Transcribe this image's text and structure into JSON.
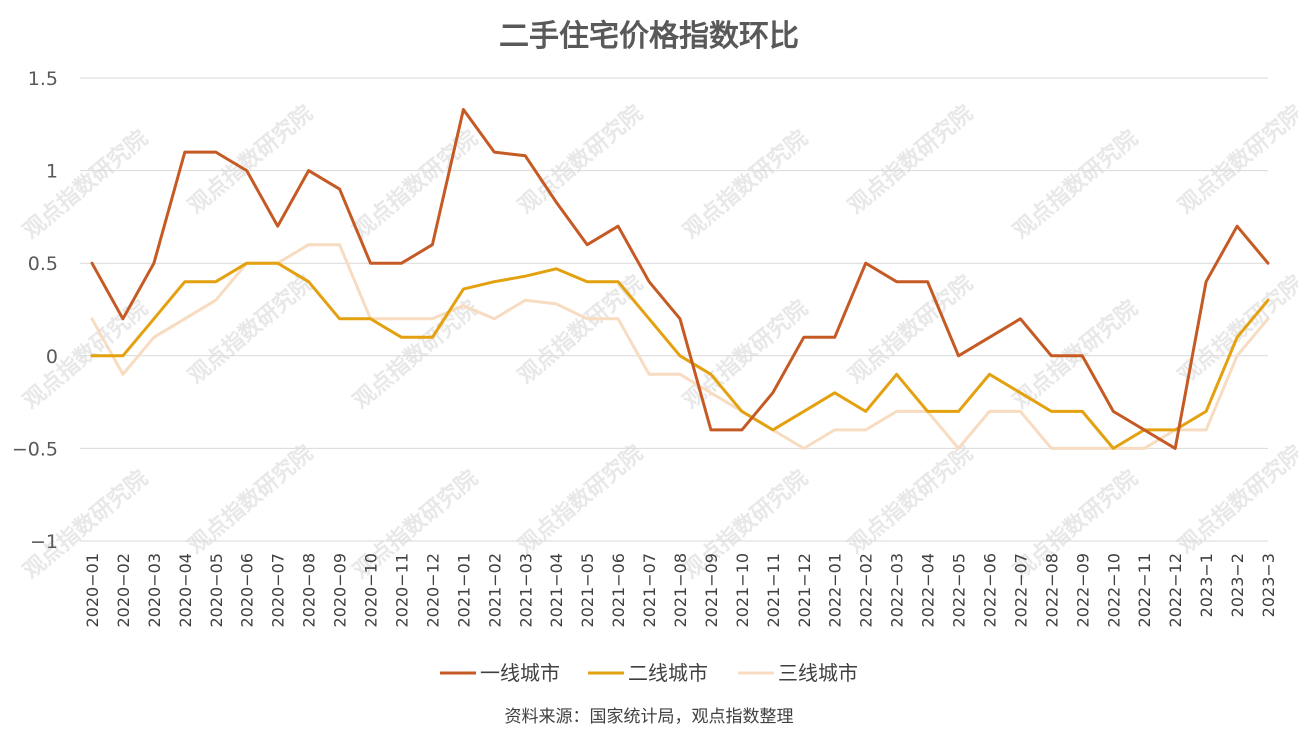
{
  "chart_data": {
    "type": "line",
    "title": "二手住宅价格指数环比",
    "source": "资料来源：国家统计局，观点指数整理",
    "watermark": "观点指数研究院",
    "ylim": [
      -1,
      1.5
    ],
    "yticks": [
      "1.5",
      "1",
      "0.5",
      "0",
      "−0.5",
      "−1"
    ],
    "ytick_values": [
      1.5,
      1,
      0.5,
      0,
      -0.5,
      -1
    ],
    "grid": true,
    "legend_position": "bottom",
    "categories": [
      "2020−01",
      "2020−02",
      "2020−03",
      "2020−04",
      "2020−05",
      "2020−06",
      "2020−07",
      "2020−08",
      "2020−09",
      "2020−10",
      "2020−11",
      "2020−12",
      "2021−01",
      "2021−02",
      "2021−03",
      "2021−04",
      "2021−05",
      "2021−06",
      "2021−07",
      "2021−08",
      "2021−09",
      "2021−10",
      "2021−11",
      "2021−12",
      "2022−01",
      "2022−02",
      "2022−03",
      "2022−04",
      "2022−05",
      "2022−06",
      "2022−07",
      "2022−08",
      "2022−09",
      "2022−10",
      "2022−11",
      "2022−12",
      "2023−1",
      "2023−2",
      "2023−3"
    ],
    "series": [
      {
        "name": "一线城市",
        "color": "#c55a24",
        "values": [
          0.5,
          0.2,
          0.5,
          1.1,
          1.1,
          1.0,
          0.7,
          1.0,
          0.9,
          0.5,
          0.5,
          0.6,
          1.33,
          1.1,
          1.08,
          0.83,
          0.6,
          0.7,
          0.4,
          0.2,
          -0.4,
          -0.4,
          -0.2,
          0.1,
          0.1,
          0.5,
          0.4,
          0.4,
          0.0,
          0.1,
          0.2,
          0.0,
          0.0,
          -0.3,
          -0.4,
          -0.5,
          0.4,
          0.7,
          0.5
        ]
      },
      {
        "name": "二线城市",
        "color": "#e3a10f",
        "values": [
          0.0,
          0.0,
          0.2,
          0.4,
          0.4,
          0.5,
          0.5,
          0.4,
          0.2,
          0.2,
          0.1,
          0.1,
          0.36,
          0.4,
          0.43,
          0.47,
          0.4,
          0.4,
          0.2,
          0.0,
          -0.1,
          -0.3,
          -0.4,
          -0.3,
          -0.2,
          -0.3,
          -0.1,
          -0.3,
          -0.3,
          -0.1,
          -0.2,
          -0.3,
          -0.3,
          -0.5,
          -0.4,
          -0.4,
          -0.3,
          0.1,
          0.3
        ]
      },
      {
        "name": "三线城市",
        "color": "#f8dcc1",
        "values": [
          0.2,
          -0.1,
          0.1,
          0.2,
          0.3,
          0.5,
          0.5,
          0.6,
          0.6,
          0.2,
          0.2,
          0.2,
          0.27,
          0.2,
          0.3,
          0.28,
          0.2,
          0.2,
          -0.1,
          -0.1,
          -0.2,
          -0.3,
          -0.4,
          -0.5,
          -0.4,
          -0.4,
          -0.3,
          -0.3,
          -0.5,
          -0.3,
          -0.3,
          -0.5,
          -0.5,
          -0.5,
          -0.5,
          -0.4,
          -0.4,
          0.0,
          0.2
        ]
      }
    ]
  }
}
